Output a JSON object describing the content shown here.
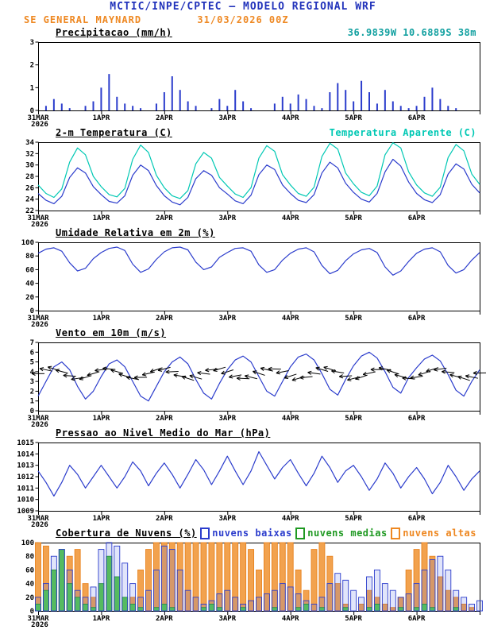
{
  "header": {
    "title": "MCTIC/INPE/CPTEC — MODELO REGIONAL WRF",
    "station": "SE GENERAL MAYNARD",
    "datetime": "31/03/2026 00Z",
    "coords": "36.9839W 10.6889S 38m"
  },
  "colors": {
    "title_blue": "#2233bb",
    "orange": "#ee8822",
    "teal": "#11a0a0",
    "line_blue": "#2b3ccc",
    "cyan": "#00c8b4",
    "green": "#1f9922",
    "black": "#000000"
  },
  "panels": {
    "precip": {
      "title": "Precipitacao (mm/h)"
    },
    "temp": {
      "title": "2-m Temperatura (C)",
      "right_label": "Temperatura Aparente (C)"
    },
    "umid": {
      "title": "Umidade Relativa em 2m (%)"
    },
    "vento": {
      "title": "Vento em 10m (m/s)"
    },
    "pressao": {
      "title": "Pressao ao Nivel Medio do Mar (hPa)"
    },
    "nuvens": {
      "title": "Cobertura de Nuvens (%)",
      "legend": [
        {
          "label": "nuvens baixas",
          "color": "#2b3ccc"
        },
        {
          "label": "nuvens medias",
          "color": "#1f9922"
        },
        {
          "label": "nuvens altas",
          "color": "#ee8822"
        }
      ]
    }
  },
  "x_axis": {
    "total_hours": 168,
    "tick_hours": [
      0,
      24,
      48,
      72,
      96,
      120,
      144,
      168
    ],
    "labels": [
      "31MAR",
      "1APR",
      "2APR",
      "3APR",
      "4APR",
      "5APR",
      "6APR",
      ""
    ],
    "year_label": "2026"
  },
  "chart_data": [
    {
      "id": "precipitacao",
      "type": "bar",
      "title": "Precipitacao (mm/h)",
      "ylim": [
        0,
        3
      ],
      "yticks": [
        0,
        1,
        2,
        3
      ],
      "x_hours_start": 0,
      "x_hours_step": 3,
      "color": "#2b3ccc",
      "values": [
        0,
        0.2,
        0.5,
        0.3,
        0.1,
        0,
        0.2,
        0.4,
        1.0,
        1.6,
        0.6,
        0.3,
        0.2,
        0.1,
        0,
        0.3,
        0.8,
        1.5,
        0.9,
        0.4,
        0.2,
        0,
        0.1,
        0.5,
        0.2,
        0.9,
        0.4,
        0.1,
        0,
        0,
        0.3,
        0.6,
        0.3,
        0.7,
        0.5,
        0.2,
        0.1,
        0.8,
        1.2,
        0.9,
        0.4,
        1.3,
        0.8,
        0.3,
        0.9,
        0.4,
        0.2,
        0.1,
        0.2,
        0.6,
        1.0,
        0.5,
        0.2,
        0.1,
        0,
        0,
        0
      ]
    },
    {
      "id": "temperatura",
      "type": "line",
      "title": "2-m Temperatura (C)",
      "ylim": [
        22,
        34
      ],
      "yticks": [
        22,
        24,
        26,
        28,
        30,
        32,
        34
      ],
      "x_hours_start": 0,
      "x_hours_step": 3,
      "series": [
        {
          "name": "2-m Temperatura (C)",
          "color": "#2b3ccc",
          "values": [
            25.0,
            23.8,
            23.2,
            24.5,
            27.8,
            29.5,
            28.6,
            26.2,
            24.8,
            23.6,
            23.3,
            24.6,
            28.2,
            30.0,
            29.0,
            26.4,
            24.6,
            23.5,
            23.0,
            24.3,
            27.6,
            29.0,
            28.2,
            26.0,
            24.9,
            23.7,
            23.2,
            24.7,
            28.3,
            30.0,
            29.2,
            26.5,
            25.0,
            23.8,
            23.4,
            24.8,
            28.6,
            30.5,
            29.5,
            26.8,
            25.2,
            24.0,
            23.5,
            25.0,
            28.8,
            31.0,
            29.8,
            27.0,
            25.0,
            23.9,
            23.4,
            24.8,
            28.4,
            30.2,
            29.3,
            26.6,
            25.1
          ]
        },
        {
          "name": "Temperatura Aparente (C)",
          "color": "#00c8b4",
          "values": [
            26.5,
            25.0,
            24.3,
            25.8,
            30.5,
            33.0,
            31.8,
            28.0,
            26.2,
            24.8,
            24.4,
            25.9,
            31.0,
            33.5,
            32.2,
            28.2,
            26.0,
            24.6,
            24.1,
            25.5,
            30.2,
            32.2,
            31.2,
            27.8,
            26.3,
            24.9,
            24.3,
            26.0,
            31.2,
            33.4,
            32.4,
            28.3,
            26.5,
            25.0,
            24.5,
            26.1,
            31.5,
            33.8,
            32.8,
            28.6,
            26.7,
            25.2,
            24.6,
            26.3,
            31.8,
            33.9,
            33.0,
            28.8,
            26.5,
            25.1,
            24.5,
            26.1,
            31.3,
            33.6,
            32.5,
            28.4,
            26.6
          ]
        }
      ]
    },
    {
      "id": "umidade",
      "type": "line",
      "title": "Umidade Relativa em 2m (%)",
      "ylim": [
        0,
        100
      ],
      "yticks": [
        0,
        20,
        40,
        60,
        80,
        100
      ],
      "x_hours_start": 0,
      "x_hours_step": 3,
      "series": [
        {
          "name": "Umidade Relativa",
          "color": "#2b3ccc",
          "values": [
            84,
            90,
            92,
            87,
            70,
            58,
            62,
            76,
            85,
            91,
            93,
            88,
            68,
            56,
            61,
            75,
            86,
            92,
            93,
            89,
            71,
            60,
            64,
            78,
            85,
            91,
            92,
            87,
            67,
            56,
            60,
            74,
            84,
            90,
            92,
            86,
            66,
            54,
            59,
            73,
            83,
            89,
            91,
            85,
            64,
            52,
            58,
            72,
            84,
            90,
            92,
            86,
            66,
            55,
            60,
            74,
            85
          ]
        }
      ]
    },
    {
      "id": "vento",
      "type": "line",
      "title": "Vento em 10m (m/s)",
      "ylim": [
        0,
        7
      ],
      "yticks": [
        0,
        1,
        2,
        3,
        4,
        5,
        6,
        7
      ],
      "x_hours_start": 0,
      "x_hours_step": 3,
      "barbs": {
        "y_center": 3.8,
        "color": "#000000"
      },
      "series": [
        {
          "name": "Vento 10m",
          "color": "#2b3ccc",
          "values": [
            1.5,
            3.0,
            4.5,
            5.0,
            4.2,
            2.5,
            1.2,
            2.0,
            3.5,
            4.8,
            5.2,
            4.5,
            3.0,
            1.5,
            1.0,
            2.5,
            4.0,
            5.0,
            5.5,
            4.8,
            3.2,
            1.8,
            1.2,
            2.8,
            4.2,
            5.2,
            5.6,
            5.0,
            3.5,
            2.0,
            1.5,
            3.0,
            4.5,
            5.5,
            5.8,
            5.2,
            3.8,
            2.2,
            1.6,
            3.2,
            4.6,
            5.6,
            6.0,
            5.4,
            4.0,
            2.4,
            1.8,
            3.4,
            4.4,
            5.3,
            5.7,
            5.1,
            3.7,
            2.1,
            1.5,
            3.0,
            4.2
          ]
        }
      ]
    },
    {
      "id": "pressao",
      "type": "line",
      "title": "Pressao ao Nivel Medio do Mar (hPa)",
      "ylim": [
        1009,
        1015
      ],
      "yticks": [
        1009,
        1010,
        1011,
        1012,
        1013,
        1014,
        1015
      ],
      "x_hours_start": 0,
      "x_hours_step": 3,
      "series": [
        {
          "name": "Pressao",
          "color": "#2b3ccc",
          "values": [
            1012.5,
            1011.5,
            1010.3,
            1011.5,
            1013.0,
            1012.2,
            1011.0,
            1012.0,
            1013.0,
            1012.0,
            1011.0,
            1012.0,
            1013.3,
            1012.5,
            1011.2,
            1012.3,
            1013.2,
            1012.2,
            1011.0,
            1012.2,
            1013.5,
            1012.6,
            1011.3,
            1012.5,
            1013.8,
            1012.5,
            1011.3,
            1012.5,
            1014.2,
            1013.0,
            1011.8,
            1012.8,
            1013.5,
            1012.3,
            1011.2,
            1012.3,
            1013.8,
            1012.8,
            1011.5,
            1012.5,
            1013.0,
            1012.0,
            1010.8,
            1011.8,
            1013.2,
            1012.3,
            1011.0,
            1012.0,
            1012.8,
            1011.8,
            1010.5,
            1011.5,
            1013.0,
            1012.0,
            1010.8,
            1011.8,
            1012.5
          ]
        }
      ]
    },
    {
      "id": "nuvens",
      "type": "bar",
      "title": "Cobertura de Nuvens (%)",
      "ylim": [
        0,
        100
      ],
      "yticks": [
        0,
        20,
        40,
        60,
        80,
        100
      ],
      "x_hours_start": 0,
      "x_hours_step": 3,
      "series": [
        {
          "name": "nuvens baixas",
          "color": "#2b3ccc",
          "fill": "rgba(90,110,230,0.18)",
          "values": [
            20,
            40,
            80,
            90,
            60,
            30,
            20,
            35,
            90,
            100,
            95,
            70,
            40,
            20,
            30,
            60,
            95,
            90,
            60,
            30,
            20,
            10,
            15,
            25,
            30,
            20,
            10,
            15,
            20,
            25,
            30,
            40,
            35,
            25,
            15,
            10,
            20,
            40,
            55,
            45,
            30,
            20,
            50,
            60,
            40,
            30,
            20,
            25,
            40,
            60,
            75,
            80,
            60,
            30,
            20,
            10,
            15
          ]
        },
        {
          "name": "nuvens medias",
          "color": "#1f9922",
          "fill": "#55cc44",
          "values": [
            10,
            30,
            60,
            90,
            40,
            20,
            10,
            5,
            40,
            80,
            50,
            20,
            10,
            5,
            0,
            5,
            10,
            5,
            0,
            0,
            0,
            5,
            10,
            5,
            0,
            0,
            5,
            0,
            0,
            0,
            5,
            0,
            0,
            5,
            10,
            0,
            5,
            0,
            0,
            5,
            0,
            0,
            5,
            10,
            0,
            0,
            5,
            0,
            5,
            10,
            5,
            0,
            0,
            5,
            0,
            0,
            0
          ]
        },
        {
          "name": "nuvens altas",
          "color": "#e8831f",
          "fill": "#f2a24e",
          "values": [
            100,
            95,
            60,
            30,
            80,
            90,
            40,
            20,
            10,
            5,
            0,
            0,
            20,
            60,
            90,
            100,
            100,
            100,
            100,
            100,
            100,
            100,
            100,
            100,
            100,
            100,
            100,
            90,
            60,
            100,
            100,
            100,
            100,
            60,
            30,
            90,
            100,
            80,
            40,
            10,
            0,
            10,
            30,
            20,
            10,
            5,
            20,
            60,
            90,
            100,
            80,
            50,
            30,
            20,
            10,
            5,
            0
          ]
        }
      ]
    }
  ]
}
